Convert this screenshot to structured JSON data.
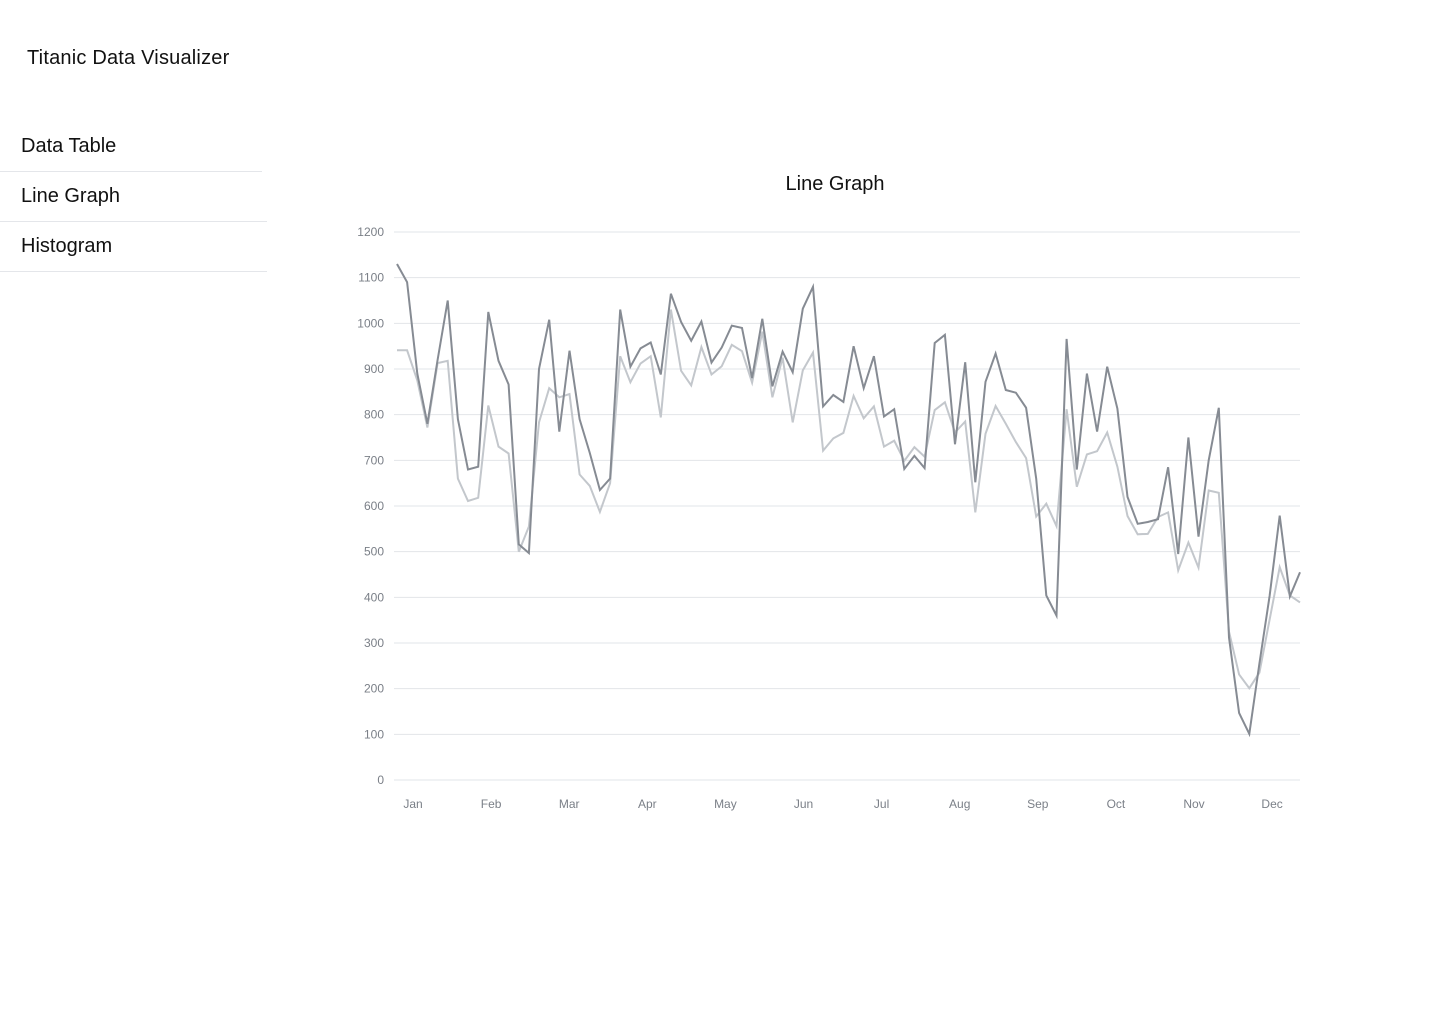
{
  "app": {
    "title": "Titanic Data Visualizer"
  },
  "sidebar": {
    "items": [
      {
        "label": "Data Table"
      },
      {
        "label": "Line Graph"
      },
      {
        "label": "Histogram"
      }
    ]
  },
  "chart_data": {
    "type": "line",
    "title": "Line Graph",
    "xlabel": "",
    "ylabel": "",
    "ylim": [
      0,
      1200
    ],
    "yticks": [
      0,
      100,
      200,
      300,
      400,
      500,
      600,
      700,
      800,
      900,
      1000,
      1100,
      1200
    ],
    "month_labels": [
      "Jan",
      "Feb",
      "Mar",
      "Apr",
      "May",
      "Jun",
      "Jul",
      "Aug",
      "Sep",
      "Oct",
      "Nov",
      "Dec"
    ],
    "grid": true,
    "legend": "none",
    "colors": {
      "series1": "#868b93",
      "series2": "#c3c7cc",
      "grid": "#e2e4e8",
      "tick_label": "#7a7f87"
    },
    "series": [
      {
        "values": [
          1130,
          1090,
          890,
          780,
          920,
          1050,
          790,
          680,
          686,
          1025,
          918,
          866,
          516,
          497,
          900,
          1008,
          763,
          940,
          790,
          716,
          635,
          660,
          1030,
          905,
          945,
          958,
          888,
          1065,
          1003,
          962,
          1004,
          914,
          947,
          995,
          990,
          880,
          1010,
          862,
          938,
          893,
          1032,
          1080,
          818,
          843,
          828,
          950,
          858,
          928,
          796,
          812,
          681,
          710,
          683,
          957,
          975,
          735,
          915,
          652,
          872,
          934,
          854,
          848,
          815,
          660,
          404,
          360,
          966,
          680,
          890,
          763,
          905,
          813,
          620,
          561,
          565,
          571,
          685,
          495,
          750,
          533,
          700,
          815,
          312,
          147,
          101,
          255,
          403,
          579,
          402,
          455
        ]
      },
      {
        "values": [
          941,
          941,
          875,
          772,
          913,
          918,
          660,
          611,
          618,
          820,
          730,
          715,
          500,
          555,
          783,
          858,
          838,
          845,
          669,
          644,
          587,
          650,
          928,
          871,
          912,
          928,
          794,
          1030,
          896,
          864,
          948,
          888,
          906,
          953,
          939,
          870,
          982,
          838,
          925,
          783,
          897,
          936,
          721,
          748,
          760,
          841,
          792,
          818,
          730,
          743,
          699,
          729,
          708,
          810,
          827,
          761,
          785,
          586,
          758,
          819,
          780,
          740,
          705,
          577,
          605,
          556,
          812,
          642,
          713,
          720,
          761,
          686,
          578,
          538,
          539,
          576,
          586,
          459,
          520,
          465,
          634,
          629,
          325,
          231,
          201,
          235,
          351,
          466,
          404,
          389
        ]
      }
    ]
  }
}
